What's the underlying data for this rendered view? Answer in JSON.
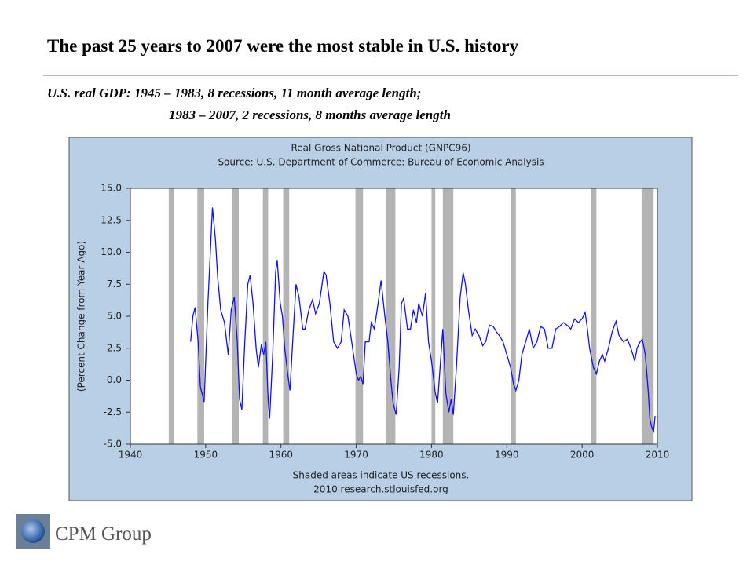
{
  "slide": {
    "title": "The past 25 years to 2007 were the most stable in U.S. history",
    "subtitle": [
      "U.S. real GDP: 1945 – 1983, 8 recessions, 11 month average length;",
      "1983 – 2007, 2 recessions, 8 months average length"
    ],
    "logo": "CPM Group"
  },
  "chart_data": {
    "type": "line",
    "title": "Real Gross National Product (GNPC96)",
    "subtitle": "Source: U.S. Department of Commerce: Bureau of Economic Analysis",
    "ylabel": "(Percent Change from Year Ago)",
    "notes": [
      "Shaded areas indicate US recessions.",
      "2010 research.stlouisfed.org"
    ],
    "color": "#1010f0",
    "recession_color": "#b4b4b4",
    "recessions": [
      [
        1945.1,
        1945.8
      ],
      [
        1948.9,
        1949.8
      ],
      [
        1953.5,
        1954.4
      ],
      [
        1957.6,
        1958.3
      ],
      [
        1960.3,
        1961.1
      ],
      [
        1969.9,
        1970.9
      ],
      [
        1973.9,
        1975.2
      ],
      [
        1980.0,
        1980.5
      ],
      [
        1981.5,
        1982.9
      ],
      [
        1990.5,
        1991.2
      ],
      [
        2001.2,
        2001.9
      ],
      [
        2007.9,
        2009.5
      ]
    ],
    "x": [
      1948.0,
      1948.3,
      1948.6,
      1949.0,
      1949.3,
      1949.5,
      1949.8,
      1950.0,
      1950.3,
      1950.7,
      1950.9,
      1951.3,
      1951.6,
      1952.0,
      1952.5,
      1953.0,
      1953.4,
      1953.8,
      1954.2,
      1954.5,
      1954.8,
      1955.2,
      1955.6,
      1955.9,
      1956.3,
      1956.7,
      1957.0,
      1957.4,
      1957.7,
      1958.0,
      1958.3,
      1958.5,
      1958.9,
      1959.3,
      1959.5,
      1959.9,
      1960.2,
      1960.5,
      1960.9,
      1961.2,
      1961.6,
      1962.0,
      1962.4,
      1962.9,
      1963.2,
      1963.7,
      1964.2,
      1964.6,
      1965.1,
      1965.7,
      1966.0,
      1966.5,
      1967.0,
      1967.5,
      1968.0,
      1968.4,
      1968.9,
      1969.4,
      1970.0,
      1970.3,
      1970.6,
      1970.9,
      1971.2,
      1971.7,
      1972.0,
      1972.4,
      1972.9,
      1973.3,
      1973.8,
      1974.2,
      1974.6,
      1974.9,
      1975.3,
      1975.7,
      1976.0,
      1976.3,
      1976.8,
      1977.2,
      1977.6,
      1978.0,
      1978.3,
      1978.8,
      1979.2,
      1979.6,
      1980.0,
      1980.5,
      1980.8,
      1981.2,
      1981.5,
      1981.9,
      1982.3,
      1982.6,
      1982.9,
      1983.3,
      1983.8,
      1984.2,
      1984.5,
      1984.9,
      1985.4,
      1985.8,
      1986.3,
      1986.8,
      1987.2,
      1987.7,
      1988.2,
      1988.6,
      1989.0,
      1989.5,
      1990.0,
      1990.5,
      1990.9,
      1991.2,
      1991.6,
      1992.0,
      1992.5,
      1993.0,
      1993.5,
      1994.0,
      1994.5,
      1995.0,
      1995.5,
      1996.0,
      1996.5,
      1997.0,
      1997.5,
      1998.0,
      1998.5,
      1999.0,
      1999.5,
      2000.0,
      2000.4,
      2000.7,
      2001.0,
      2001.5,
      2001.9,
      2002.3,
      2002.7,
      2003.0,
      2003.5,
      2004.0,
      2004.5,
      2004.9,
      2005.5,
      2006.0,
      2006.5,
      2007.0,
      2007.3,
      2007.7,
      2008.0,
      2008.4,
      2008.8,
      2009.0,
      2009.3,
      2009.5,
      2009.7
    ],
    "values": [
      3.0,
      5.0,
      5.7,
      3.0,
      -0.5,
      -1.0,
      -1.7,
      1.5,
      6.0,
      11.0,
      13.5,
      11.0,
      8.0,
      5.5,
      4.5,
      2.0,
      5.5,
      6.5,
      3.0,
      -1.5,
      -2.3,
      3.0,
      7.5,
      8.2,
      6.0,
      2.5,
      1.0,
      2.8,
      2.0,
      3.0,
      -1.5,
      -3.0,
      2.0,
      8.5,
      9.4,
      6.0,
      5.0,
      2.5,
      0.5,
      -0.8,
      3.5,
      7.5,
      6.5,
      4.0,
      4.0,
      5.5,
      6.3,
      5.2,
      6.0,
      8.5,
      8.2,
      6.0,
      3.0,
      2.5,
      3.0,
      5.5,
      5.0,
      3.0,
      0.5,
      0.0,
      0.3,
      -0.3,
      3.0,
      3.0,
      4.5,
      4.0,
      6.0,
      7.8,
      5.0,
      3.0,
      0.0,
      -1.8,
      -2.7,
      1.0,
      6.0,
      6.4,
      4.0,
      4.0,
      5.5,
      4.5,
      6.0,
      5.0,
      6.8,
      3.0,
      1.5,
      -1.0,
      -1.8,
      1.5,
      4.0,
      -1.0,
      -2.5,
      -1.5,
      -2.7,
      1.0,
      6.5,
      8.4,
      7.5,
      5.5,
      3.5,
      4.0,
      3.5,
      2.7,
      3.0,
      4.3,
      4.2,
      3.8,
      3.5,
      3.0,
      2.0,
      1.0,
      -0.3,
      -0.8,
      0.0,
      2.0,
      3.0,
      4.0,
      2.5,
      3.0,
      4.2,
      4.0,
      2.5,
      2.5,
      4.0,
      4.2,
      4.5,
      4.3,
      4.0,
      4.8,
      4.5,
      4.8,
      5.3,
      4.0,
      2.5,
      1.0,
      0.5,
      1.5,
      2.0,
      1.5,
      2.5,
      3.8,
      4.6,
      3.5,
      3.0,
      3.2,
      2.5,
      1.5,
      2.5,
      3.0,
      3.2,
      2.0,
      -1.0,
      -3.0,
      -3.8,
      -4.0,
      -2.8
    ],
    "xlim": [
      1940,
      2010
    ],
    "xticks": [
      1940,
      1950,
      1960,
      1970,
      1980,
      1990,
      2000,
      2010
    ],
    "ylim": [
      -5,
      15
    ],
    "yticks": [
      {
        "value": -5,
        "label": "-5.0"
      },
      -2.5,
      {
        "value": 0,
        "label": "0.0"
      },
      2.5,
      {
        "value": 5,
        "label": "5.0"
      },
      7.5,
      {
        "value": 10,
        "label": "10.0"
      },
      12.5,
      {
        "value": 15,
        "label": "15.0"
      }
    ]
  }
}
